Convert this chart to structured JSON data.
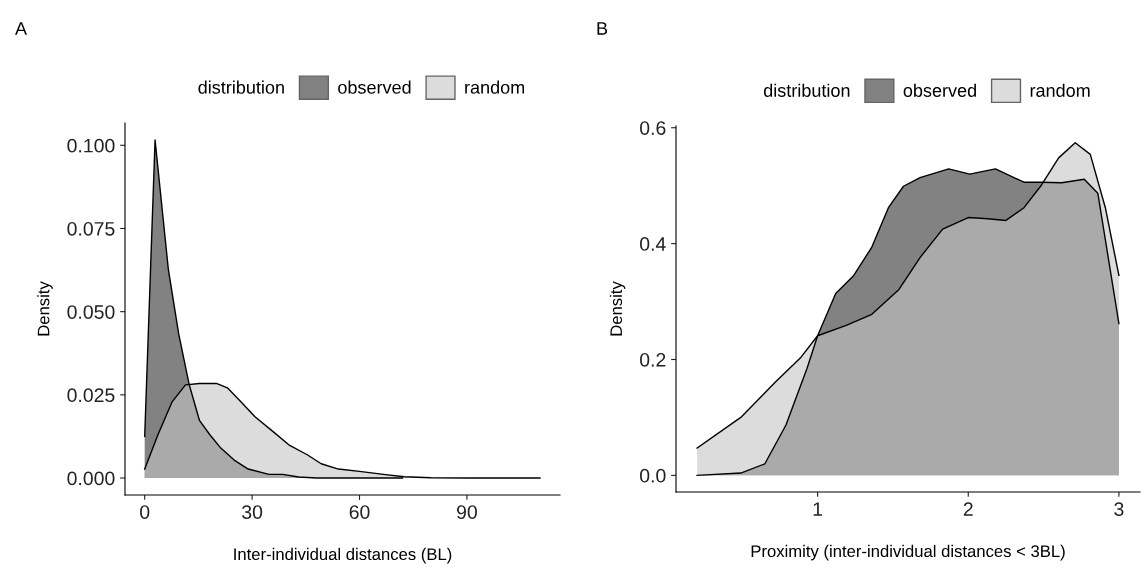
{
  "chart_data": [
    {
      "type": "area",
      "title": "A",
      "xlabel": "Inter-individual distances (BL)",
      "ylabel": "Density",
      "legend_title": "distribution",
      "legend": "top",
      "xlim": [
        -5.5,
        116
      ],
      "xticks": [
        0,
        30,
        60,
        90
      ],
      "ylim": [
        -0.0051,
        0.1067
      ],
      "yticks": [
        {
          "value": 0,
          "label": "0.000"
        },
        {
          "value": 0.025,
          "label": "0.025"
        },
        {
          "value": 0.05,
          "label": "0.050"
        },
        {
          "value": 0.075,
          "label": "0.075"
        },
        {
          "value": 0.1,
          "label": "0.100"
        }
      ],
      "grid": false,
      "series": [
        {
          "name": "observed",
          "color": "#2f2f2f",
          "x": [
            0,
            2.9,
            6.6,
            9.5,
            12.4,
            15.3,
            18.2,
            21.1,
            25,
            28.9,
            34.7,
            38.6,
            43,
            48,
            60,
            72
          ],
          "values": [
            0.0125,
            0.1016,
            0.0628,
            0.0433,
            0.0282,
            0.0173,
            0.013,
            0.0092,
            0.0054,
            0.0027,
            0.0011,
            0.0011,
            0.0003,
            0,
            0,
            0
          ]
        },
        {
          "name": "random",
          "color": "#c5c5c5",
          "x": [
            0,
            3.7,
            7.6,
            11.4,
            15.3,
            20.2,
            23.1,
            27,
            30.8,
            35.7,
            40.5,
            45.4,
            49.3,
            54.1,
            60,
            66.7,
            72.5,
            80,
            90,
            110.4
          ],
          "values": [
            0.0027,
            0.013,
            0.0228,
            0.028,
            0.0284,
            0.0284,
            0.0271,
            0.0228,
            0.0184,
            0.0141,
            0.0098,
            0.007,
            0.0043,
            0.0027,
            0.002,
            0.0011,
            0.0004,
            0.0001,
            0,
            0
          ]
        }
      ]
    },
    {
      "type": "area",
      "title": "B",
      "xlabel": "Proximity (inter-individual distances < 3BL)",
      "ylabel": "Density",
      "legend_title": "distribution",
      "legend": "top",
      "xlim": [
        0.06,
        3.14
      ],
      "xticks": [
        1,
        2,
        3
      ],
      "ylim": [
        -0.0287,
        0.603
      ],
      "yticks": [
        {
          "value": 0,
          "label": "0.0"
        },
        {
          "value": 0.2,
          "label": "0.2"
        },
        {
          "value": 0.4,
          "label": "0.4"
        },
        {
          "value": 0.6,
          "label": "0.6"
        }
      ],
      "grid": false,
      "series": [
        {
          "name": "observed",
          "color": "#2f2f2f",
          "x": [
            0.2,
            0.49,
            0.65,
            0.79,
            0.93,
            1.0,
            1.12,
            1.24,
            1.36,
            1.47,
            1.57,
            1.68,
            1.87,
            2.01,
            2.18,
            2.37,
            2.48,
            2.62,
            2.77,
            2.86,
            3.0
          ],
          "values": [
            0,
            0.004,
            0.02,
            0.087,
            0.185,
            0.241,
            0.314,
            0.345,
            0.394,
            0.462,
            0.499,
            0.514,
            0.529,
            0.52,
            0.529,
            0.506,
            0.506,
            0.505,
            0.511,
            0.487,
            0.262
          ]
        },
        {
          "name": "random",
          "color": "#c5c5c5",
          "x": [
            0.2,
            0.49,
            0.72,
            0.89,
            1.0,
            1.19,
            1.36,
            1.54,
            1.68,
            1.83,
            2.0,
            2.13,
            2.25,
            2.37,
            2.48,
            2.6,
            2.71,
            2.81,
            2.91,
            3.0
          ],
          "values": [
            0.047,
            0.1,
            0.161,
            0.204,
            0.241,
            0.259,
            0.278,
            0.321,
            0.376,
            0.425,
            0.445,
            0.443,
            0.44,
            0.462,
            0.499,
            0.548,
            0.574,
            0.554,
            0.462,
            0.345
          ]
        }
      ]
    }
  ]
}
